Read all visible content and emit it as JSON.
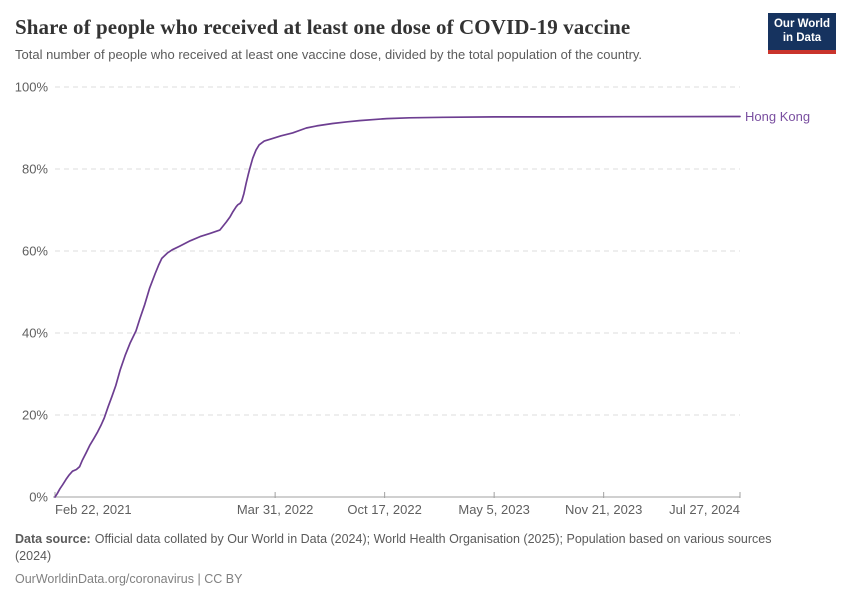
{
  "header": {
    "title": "Share of people who received at least one dose of COVID-19 vaccine",
    "subtitle": "Total number of people who received at least one vaccine dose, divided by the total population of the country.",
    "logo": {
      "line1": "Our World",
      "line2": "in Data"
    }
  },
  "colors": {
    "line": "#6d3e91",
    "entity_label": "#7a4fa0",
    "grid": "#dcdcdc",
    "axis": "#a1a1a1",
    "tick_text": "#5f5f5f",
    "logo_bg": "#16335f",
    "logo_accent": "#c9342c"
  },
  "chart_data": {
    "type": "line",
    "title": "Share of people who received at least one dose of COVID-19 vaccine",
    "xlabel": "",
    "ylabel": "",
    "ylim": [
      0,
      100
    ],
    "grid": "horizontal-dashed",
    "legend_position": "end-of-line-label",
    "x_range": [
      "2021-02-22",
      "2024-07-27"
    ],
    "y_ticks": [
      {
        "value": 0,
        "label": "0%"
      },
      {
        "value": 20,
        "label": "20%"
      },
      {
        "value": 40,
        "label": "40%"
      },
      {
        "value": 60,
        "label": "60%"
      },
      {
        "value": 80,
        "label": "80%"
      },
      {
        "value": 100,
        "label": "100%"
      }
    ],
    "x_ticks": [
      {
        "label": "Feb 22, 2021",
        "date": "2021-02-22",
        "anchor": "start"
      },
      {
        "label": "Mar 31, 2022",
        "date": "2022-03-31",
        "anchor": "middle"
      },
      {
        "label": "Oct 17, 2022",
        "date": "2022-10-17",
        "anchor": "middle"
      },
      {
        "label": "May 5, 2023",
        "date": "2023-05-05",
        "anchor": "middle"
      },
      {
        "label": "Nov 21, 2023",
        "date": "2023-11-21",
        "anchor": "middle"
      },
      {
        "label": "Jul 27, 2024",
        "date": "2024-07-27",
        "anchor": "end"
      }
    ],
    "series": [
      {
        "name": "Hong Kong",
        "color": "#6d3e91",
        "points": [
          [
            "2021-02-22",
            0
          ],
          [
            "2021-02-26",
            0.8
          ],
          [
            "2021-03-03",
            2.0
          ],
          [
            "2021-03-08",
            3.0
          ],
          [
            "2021-03-14",
            4.3
          ],
          [
            "2021-03-20",
            5.4
          ],
          [
            "2021-03-26",
            6.3
          ],
          [
            "2021-04-02",
            6.7
          ],
          [
            "2021-04-08",
            7.4
          ],
          [
            "2021-04-13",
            9.0
          ],
          [
            "2021-04-20",
            10.8
          ],
          [
            "2021-04-27",
            12.7
          ],
          [
            "2021-05-04",
            14.3
          ],
          [
            "2021-05-11",
            15.9
          ],
          [
            "2021-05-17",
            17.5
          ],
          [
            "2021-05-23",
            19.3
          ],
          [
            "2021-05-30",
            22.0
          ],
          [
            "2021-06-06",
            24.5
          ],
          [
            "2021-06-13",
            27.2
          ],
          [
            "2021-06-21",
            31.0
          ],
          [
            "2021-06-30",
            34.5
          ],
          [
            "2021-07-09",
            37.5
          ],
          [
            "2021-07-20",
            40.5
          ],
          [
            "2021-07-27",
            43.5
          ],
          [
            "2021-08-05",
            47.0
          ],
          [
            "2021-08-14",
            51.0
          ],
          [
            "2021-08-24",
            54.5
          ],
          [
            "2021-08-30",
            56.5
          ],
          [
            "2021-09-05",
            58.2
          ],
          [
            "2021-09-15",
            59.5
          ],
          [
            "2021-09-24",
            60.3
          ],
          [
            "2021-10-08",
            61.2
          ],
          [
            "2021-10-27",
            62.5
          ],
          [
            "2021-11-14",
            63.5
          ],
          [
            "2021-12-02",
            64.3
          ],
          [
            "2021-12-20",
            65.1
          ],
          [
            "2022-01-01",
            67.1
          ],
          [
            "2022-01-08",
            68.4
          ],
          [
            "2022-01-13",
            69.6
          ],
          [
            "2022-01-19",
            70.8
          ],
          [
            "2022-01-22",
            71.3
          ],
          [
            "2022-01-26",
            71.6
          ],
          [
            "2022-01-29",
            72.2
          ],
          [
            "2022-02-02",
            74.0
          ],
          [
            "2022-02-06",
            76.5
          ],
          [
            "2022-02-10",
            78.7
          ],
          [
            "2022-02-13",
            80.2
          ],
          [
            "2022-02-18",
            82.6
          ],
          [
            "2022-02-24",
            84.6
          ],
          [
            "2022-03-02",
            85.9
          ],
          [
            "2022-03-11",
            86.8
          ],
          [
            "2022-03-23",
            87.3
          ],
          [
            "2022-04-11",
            88.1
          ],
          [
            "2022-05-02",
            88.8
          ],
          [
            "2022-05-27",
            90.0
          ],
          [
            "2022-06-15",
            90.5
          ],
          [
            "2022-07-14",
            91.1
          ],
          [
            "2022-08-10",
            91.5
          ],
          [
            "2022-09-01",
            91.8
          ],
          [
            "2022-10-21",
            92.3
          ],
          [
            "2022-12-01",
            92.5
          ],
          [
            "2023-02-01",
            92.6
          ],
          [
            "2023-05-05",
            92.7
          ],
          [
            "2023-09-01",
            92.7
          ],
          [
            "2024-01-01",
            92.75
          ],
          [
            "2024-07-27",
            92.8
          ]
        ]
      }
    ]
  },
  "footer": {
    "source_label": "Data source:",
    "source_text": "Official data collated by Our World in Data (2024); World Health Organisation (2025); Population based on various sources (2024)",
    "link": "OurWorldinData.org/coronavirus",
    "separator": " | ",
    "license": "CC BY"
  }
}
